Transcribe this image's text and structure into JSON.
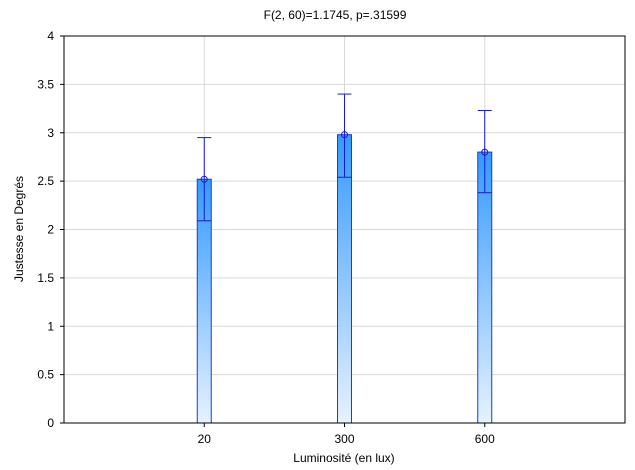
{
  "chart_data": {
    "type": "bar",
    "title": "F(2, 60)=1.1745, p=.31599",
    "xlabel": "Luminosité (en lux)",
    "ylabel": "Justesse en Degrés",
    "categories": [
      "20",
      "300",
      "600"
    ],
    "series": [
      {
        "values": [
          2.52,
          2.98,
          2.8
        ],
        "error_low": [
          2.09,
          2.54,
          2.38
        ],
        "error_high": [
          2.95,
          3.4,
          3.23
        ]
      }
    ],
    "ylim": [
      0,
      4
    ],
    "yticks": [
      "0",
      "0.5",
      "1",
      "1.5",
      "2",
      "2.5",
      "3",
      "3.5",
      "4"
    ],
    "grid": true,
    "colors": {
      "bar_top": "#3399ff",
      "bar_bottom": "#e6f2ff",
      "bar_edge": "#1a3fcc",
      "error": "#1a1acc",
      "grid": "#d9d9d9"
    }
  }
}
